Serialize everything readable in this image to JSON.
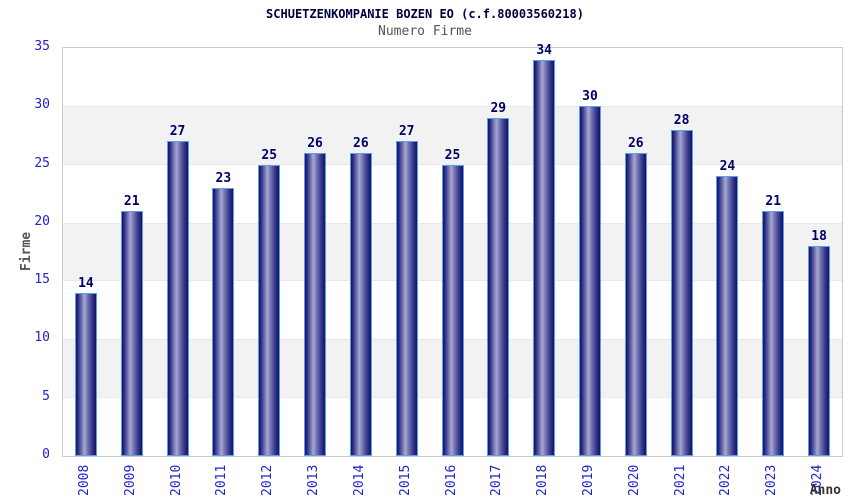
{
  "chart_data": {
    "type": "bar",
    "title": "SCHUETZENKOMPANIE BOZEN EO (c.f.80003560218)",
    "subtitle": "Numero Firme",
    "xlabel": "Anno",
    "ylabel": "Firme",
    "categories": [
      "2008",
      "2009",
      "2010",
      "2011",
      "2012",
      "2013",
      "2014",
      "2015",
      "2016",
      "2017",
      "2018",
      "2019",
      "2020",
      "2021",
      "2022",
      "2023",
      "2024"
    ],
    "values": [
      14,
      21,
      27,
      23,
      25,
      26,
      26,
      27,
      25,
      29,
      34,
      30,
      26,
      28,
      24,
      21,
      18
    ],
    "ylim": [
      0,
      35
    ],
    "yticks": [
      0,
      5,
      10,
      15,
      20,
      25,
      30,
      35
    ],
    "grid": "alternating-horizontal-bands",
    "legend": "none",
    "colors": {
      "bar_dark": "#131360",
      "bar_light": "#a9a9d2",
      "bar_border": "#55a0f0",
      "axis_tick_label": "#2222cc",
      "bar_value_label": "#000066",
      "title": "#000040",
      "subtitle": "#555555",
      "axis_title": "#555555",
      "xlabel_color": "#333333",
      "band_gray": "#f2f2f2",
      "plot_border": "#cccccc"
    }
  }
}
